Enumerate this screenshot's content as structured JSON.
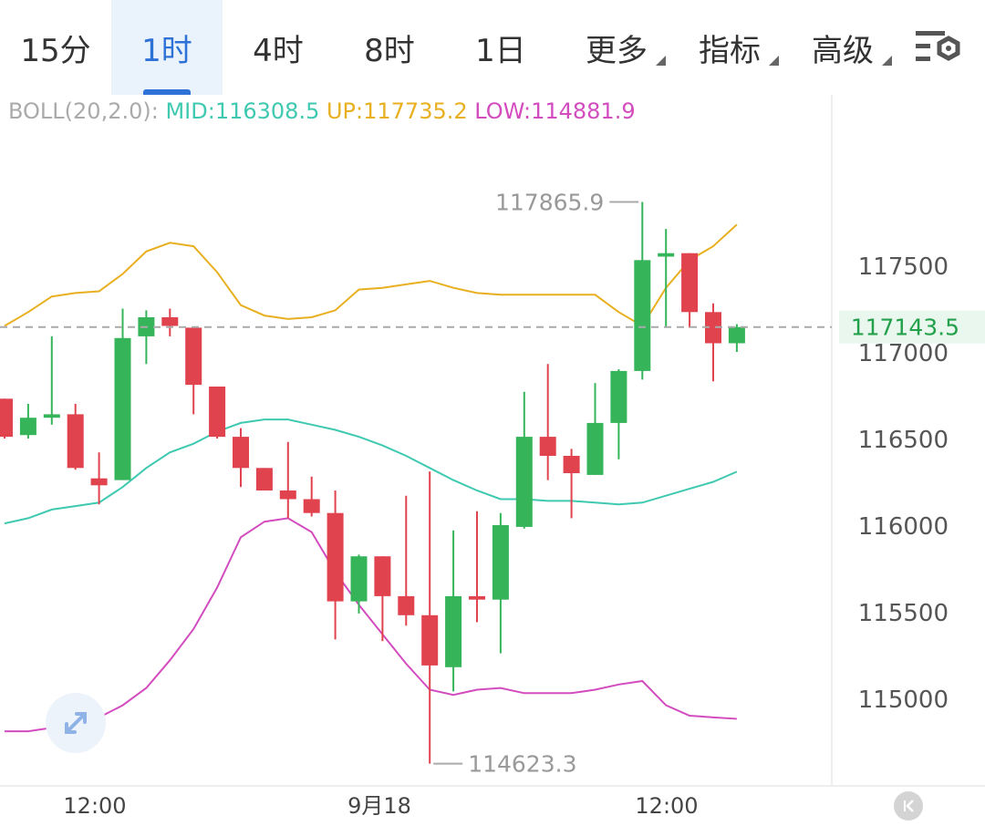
{
  "tabs": [
    {
      "label": "15分",
      "active": false
    },
    {
      "label": "1时",
      "active": true
    },
    {
      "label": "4时",
      "active": false
    },
    {
      "label": "8时",
      "active": false
    },
    {
      "label": "1日",
      "active": false
    },
    {
      "label": "更多",
      "active": false,
      "dropdown": true
    },
    {
      "label": "指标",
      "active": false,
      "dropdown": true
    },
    {
      "label": "高级",
      "active": false,
      "dropdown": true
    }
  ],
  "settings_icon": "chart-settings-icon",
  "indicator": {
    "name": "BOLL(20,2.0):",
    "mid": "MID:116308.5",
    "up": "UP:117735.2",
    "low": "LOW:114881.9"
  },
  "colors": {
    "up": "#35b45a",
    "down": "#e0424e",
    "mid": "#3ec9b0",
    "upper": "#e8b020",
    "lower": "#d34cbf",
    "accent": "#2e72d8",
    "last_price": "#23a04a"
  },
  "chart_data": {
    "type": "candlestick",
    "interval": "1时",
    "ylim": [
      114450,
      118100
    ],
    "y_ticks": [
      115000,
      115500,
      116000,
      116500,
      117000,
      117500
    ],
    "x_labels": [
      "12:00",
      "9月18",
      "12:00"
    ],
    "last_price": "117143.5",
    "high_marker": "117865.9",
    "low_marker": "114623.3",
    "candles": [
      {
        "o": 116730,
        "h": 116730,
        "l": 116500,
        "c": 116510
      },
      {
        "o": 116520,
        "h": 116700,
        "l": 116500,
        "c": 116620
      },
      {
        "o": 116620,
        "h": 117090,
        "l": 116580,
        "c": 116640
      },
      {
        "o": 116640,
        "h": 116700,
        "l": 116320,
        "c": 116330
      },
      {
        "o": 116270,
        "h": 116420,
        "l": 116120,
        "c": 116230
      },
      {
        "o": 116260,
        "h": 117250,
        "l": 116260,
        "c": 117080
      },
      {
        "o": 117090,
        "h": 117240,
        "l": 116930,
        "c": 117200
      },
      {
        "o": 117200,
        "h": 117250,
        "l": 117090,
        "c": 117150
      },
      {
        "o": 117140,
        "h": 117140,
        "l": 116640,
        "c": 116810
      },
      {
        "o": 116800,
        "h": 116800,
        "l": 116500,
        "c": 116510
      },
      {
        "o": 116510,
        "h": 116560,
        "l": 116220,
        "c": 116330
      },
      {
        "o": 116330,
        "h": 116330,
        "l": 116200,
        "c": 116200
      },
      {
        "o": 116200,
        "h": 116480,
        "l": 116040,
        "c": 116150
      },
      {
        "o": 116150,
        "h": 116280,
        "l": 116050,
        "c": 116070
      },
      {
        "o": 116070,
        "h": 116200,
        "l": 115340,
        "c": 115560
      },
      {
        "o": 115560,
        "h": 115830,
        "l": 115490,
        "c": 115820
      },
      {
        "o": 115820,
        "h": 115820,
        "l": 115330,
        "c": 115590
      },
      {
        "o": 115590,
        "h": 116170,
        "l": 115420,
        "c": 115480
      },
      {
        "o": 115480,
        "h": 116310,
        "l": 114623.3,
        "c": 115190
      },
      {
        "o": 115180,
        "h": 115970,
        "l": 115040,
        "c": 115590
      },
      {
        "o": 115590,
        "h": 116080,
        "l": 115440,
        "c": 115570
      },
      {
        "o": 115570,
        "h": 116070,
        "l": 115260,
        "c": 116000
      },
      {
        "o": 115990,
        "h": 116770,
        "l": 115980,
        "c": 116510
      },
      {
        "o": 116510,
        "h": 116930,
        "l": 116260,
        "c": 116400
      },
      {
        "o": 116400,
        "h": 116440,
        "l": 116040,
        "c": 116300
      },
      {
        "o": 116290,
        "h": 116820,
        "l": 116290,
        "c": 116590
      },
      {
        "o": 116590,
        "h": 116900,
        "l": 116380,
        "c": 116890
      },
      {
        "o": 116890,
        "h": 117865.9,
        "l": 116840,
        "c": 117530
      },
      {
        "o": 117550,
        "h": 117710,
        "l": 117140,
        "c": 117570
      },
      {
        "o": 117570,
        "h": 117570,
        "l": 117140,
        "c": 117230
      },
      {
        "o": 117230,
        "h": 117280,
        "l": 116830,
        "c": 117050
      },
      {
        "o": 117050,
        "h": 117160,
        "l": 117000,
        "c": 117143.5
      }
    ],
    "series": [
      {
        "name": "UP",
        "values": [
          117150,
          117230,
          117320,
          117340,
          117350,
          117450,
          117580,
          117630,
          117610,
          117460,
          117270,
          117210,
          117190,
          117200,
          117240,
          117360,
          117370,
          117390,
          117410,
          117370,
          117340,
          117330,
          117330,
          117330,
          117330,
          117330,
          117230,
          117150,
          117370,
          117530,
          117610,
          117735.2
        ]
      },
      {
        "name": "MID",
        "values": [
          116010,
          116040,
          116090,
          116110,
          116130,
          116220,
          116330,
          116420,
          116470,
          116540,
          116590,
          116610,
          116610,
          116580,
          116550,
          116510,
          116460,
          116400,
          116330,
          116260,
          116200,
          116150,
          116150,
          116140,
          116140,
          116130,
          116120,
          116130,
          116170,
          116210,
          116250,
          116308.5
        ]
      },
      {
        "name": "LOW",
        "values": [
          114810,
          114810,
          114830,
          114850,
          114890,
          114960,
          115060,
          115220,
          115400,
          115640,
          115930,
          116020,
          116040,
          115960,
          115730,
          115540,
          115370,
          115200,
          115050,
          115020,
          115050,
          115060,
          115030,
          115030,
          115030,
          115050,
          115080,
          115100,
          114960,
          114900,
          114890,
          114881.9
        ]
      }
    ]
  }
}
